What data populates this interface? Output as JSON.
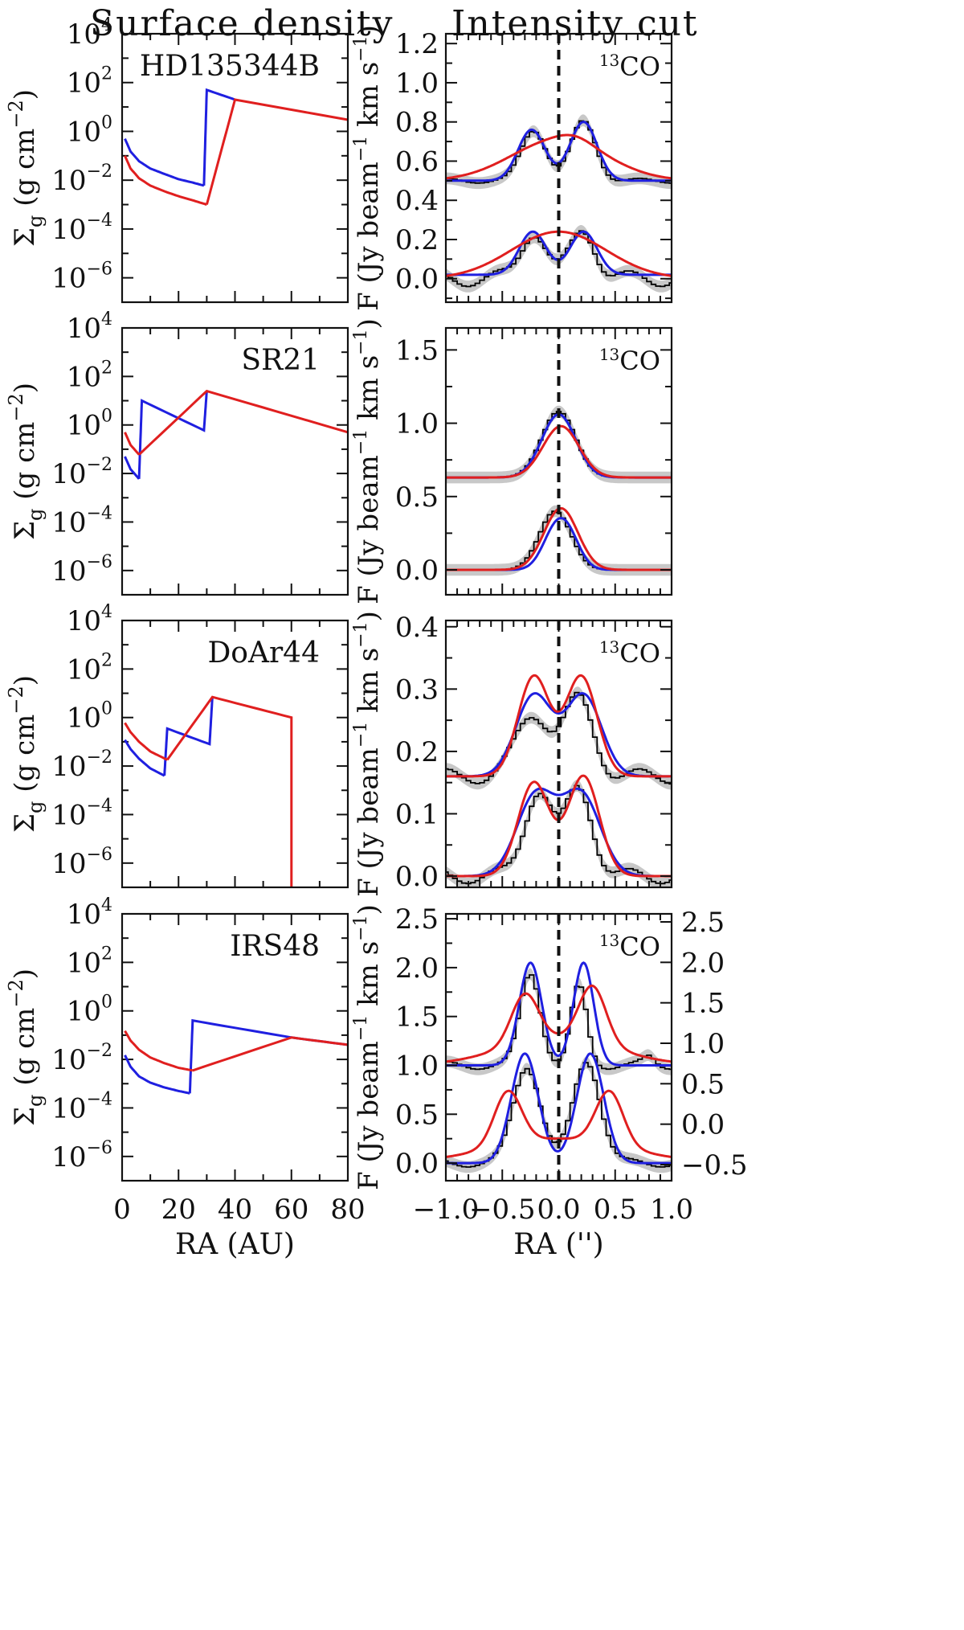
{
  "figure": {
    "col_titles": {
      "left": "Surface density",
      "right": "Intensity cut"
    },
    "left_axis": {
      "ylabel_sym": "Σ",
      "ylabel_sub": "g",
      "ylabel_unit": "(g cm",
      "ylabel_exp": "−2",
      "ylabel_close": ")",
      "yticks": [
        4,
        2,
        0,
        -2,
        -4,
        -6
      ],
      "xticks": [
        "0",
        "20",
        "40",
        "60",
        "80"
      ],
      "xlabel": "RA (AU)",
      "xlim": [
        0,
        80
      ]
    },
    "right_axis": {
      "ylabel": "F (Jy beam",
      "ylabel_exp1": "−1",
      "ylabel_mid": " km s",
      "ylabel_exp2": "−1",
      "ylabel_close": ")",
      "xticks": [
        "−1.0",
        "−0.5",
        "0.0",
        "0.5",
        "1.0"
      ],
      "xlabel": "RA ('')",
      "xlim": [
        -1.0,
        1.0
      ],
      "line_label_sup": "13",
      "line_label": "CO"
    },
    "colors": {
      "model_a": "#1f1fe0",
      "model_b": "#e01f1f",
      "data": "#000000",
      "band": "#c8c8c8"
    }
  },
  "chart_data": [
    {
      "type": "line",
      "panel": "surface-density",
      "name": "HD135344B",
      "yscale": "log",
      "ylim": [
        1e-07,
        10000.0
      ],
      "series": [
        {
          "color": "blue",
          "segments": [
            {
              "x": [
                1,
                3,
                6,
                10,
                15,
                20,
                25,
                29
              ],
              "y": [
                0.5,
                0.15,
                0.06,
                0.03,
                0.018,
                0.011,
                0.008,
                0.006
              ]
            },
            {
              "x": [
                29,
                30,
                40
              ],
              "y": [
                0.006,
                50,
                20
              ]
            }
          ]
        },
        {
          "color": "red",
          "segments": [
            {
              "x": [
                1,
                3,
                6,
                10,
                15,
                20,
                25,
                30
              ],
              "y": [
                0.1,
                0.03,
                0.012,
                0.006,
                0.0035,
                0.0022,
                0.0015,
                0.001
              ]
            },
            {
              "x": [
                30,
                40,
                80
              ],
              "y": [
                0.001,
                20,
                3
              ]
            }
          ]
        }
      ]
    },
    {
      "type": "line",
      "panel": "surface-density",
      "name": "SR21",
      "yscale": "log",
      "ylim": [
        1e-07,
        10000.0
      ],
      "series": [
        {
          "color": "blue",
          "segments": [
            {
              "x": [
                1,
                3,
                6
              ],
              "y": [
                0.05,
                0.015,
                0.006
              ]
            },
            {
              "x": [
                6,
                7,
                29,
                30
              ],
              "y": [
                0.006,
                10,
                0.6,
                25
              ]
            }
          ]
        },
        {
          "color": "red",
          "segments": [
            {
              "x": [
                1,
                3,
                6
              ],
              "y": [
                0.5,
                0.15,
                0.06
              ]
            },
            {
              "x": [
                6,
                30,
                80
              ],
              "y": [
                0.06,
                25,
                0.5
              ]
            }
          ]
        }
      ]
    },
    {
      "type": "line",
      "panel": "surface-density",
      "name": "DoAr44",
      "yscale": "log",
      "ylim": [
        1e-07,
        10000.0
      ],
      "series": [
        {
          "color": "blue",
          "segments": [
            {
              "x": [
                1,
                3,
                6,
                10,
                15
              ],
              "y": [
                0.12,
                0.05,
                0.02,
                0.008,
                0.004
              ]
            },
            {
              "x": [
                15,
                16,
                31,
                32
              ],
              "y": [
                0.004,
                0.35,
                0.08,
                7
              ]
            }
          ]
        },
        {
          "color": "red",
          "segments": [
            {
              "x": [
                1,
                3,
                6,
                10,
                16
              ],
              "y": [
                0.6,
                0.25,
                0.1,
                0.04,
                0.018
              ]
            },
            {
              "x": [
                16,
                32,
                60,
                60
              ],
              "y": [
                0.018,
                7,
                1,
                1e-07
              ]
            }
          ]
        }
      ]
    },
    {
      "type": "line",
      "panel": "surface-density",
      "name": "IRS48",
      "yscale": "log",
      "ylim": [
        1e-07,
        10000.0
      ],
      "series": [
        {
          "color": "blue",
          "segments": [
            {
              "x": [
                1,
                3,
                6,
                10,
                15,
                20,
                24
              ],
              "y": [
                0.015,
                0.005,
                0.002,
                0.0011,
                0.0007,
                0.0005,
                0.0004
              ]
            },
            {
              "x": [
                24,
                25,
                60,
                80
              ],
              "y": [
                0.0004,
                0.4,
                0.08,
                0.04
              ]
            }
          ]
        },
        {
          "color": "red",
          "segments": [
            {
              "x": [
                1,
                3,
                6,
                10,
                15,
                20,
                25
              ],
              "y": [
                0.15,
                0.06,
                0.025,
                0.012,
                0.007,
                0.0045,
                0.0035
              ]
            },
            {
              "x": [
                25,
                60,
                80
              ],
              "y": [
                0.0035,
                0.08,
                0.04
              ]
            }
          ]
        }
      ]
    },
    {
      "type": "line",
      "panel": "intensity-cut",
      "name": "HD135344B",
      "ylim": [
        -0.12,
        1.25
      ],
      "yticks": [
        "0.0",
        "0.2",
        "0.4",
        "0.6",
        "0.8",
        "1.0",
        "1.2"
      ],
      "ytick_values": [
        0,
        0.2,
        0.4,
        0.6,
        0.8,
        1.0,
        1.2
      ],
      "groups": [
        {
          "offset": 0.5,
          "data_w": 0.012,
          "data_peaks": [
            [
              -0.22,
              0.26,
              0.11
            ],
            [
              0.22,
              0.3,
              0.11
            ]
          ],
          "blue_base": 0.0,
          "blue_peaks": [
            [
              -0.24,
              0.26,
              0.12
            ],
            [
              0.22,
              0.3,
              0.12
            ]
          ],
          "red_peaks": [
            [
              0.0,
              0.21,
              0.42
            ],
            [
              0.15,
              0.03,
              0.15
            ]
          ],
          "red_base": 0.0
        },
        {
          "offset": 0.0,
          "data_w": 0.04,
          "data_peaks": [
            [
              -0.22,
              0.25,
              0.11
            ],
            [
              0.22,
              0.25,
              0.11
            ]
          ],
          "blue_base": 0.02,
          "blue_peaks": [
            [
              -0.23,
              0.22,
              0.12
            ],
            [
              0.22,
              0.22,
              0.12
            ]
          ],
          "red_peaks": [
            [
              0.0,
              0.24,
              0.42
            ]
          ],
          "red_base": 0.0
        }
      ]
    },
    {
      "type": "line",
      "panel": "intensity-cut",
      "name": "SR21",
      "ylim": [
        -0.17,
        1.65
      ],
      "yticks": [
        "0.0",
        "0.5",
        "1.0",
        "1.5"
      ],
      "ytick_values": [
        0,
        0.5,
        1.0,
        1.5
      ],
      "groups": [
        {
          "offset": 0.63,
          "data_w": 0.0,
          "data_peaks": [
            [
              0.0,
              0.45,
              0.15
            ]
          ],
          "blue_base": 0.0,
          "blue_peaks": [
            [
              0.0,
              0.43,
              0.15
            ]
          ],
          "red_peaks": [
            [
              0.02,
              0.35,
              0.16
            ]
          ],
          "red_base": 0.0
        },
        {
          "offset": 0.0,
          "data_w": 0.0,
          "data_peaks": [
            [
              -0.03,
              0.4,
              0.14
            ]
          ],
          "blue_base": 0.0,
          "blue_peaks": [
            [
              -0.05,
              0.2,
              0.11
            ],
            [
              0.08,
              0.22,
              0.11
            ]
          ],
          "red_peaks": [
            [
              0.02,
              0.42,
              0.15
            ]
          ],
          "red_base": 0.0
        }
      ]
    },
    {
      "type": "line",
      "panel": "intensity-cut",
      "name": "DoAr44",
      "ylim": [
        -0.018,
        0.41
      ],
      "yticks": [
        "0.0",
        "0.1",
        "0.2",
        "0.3",
        "0.4"
      ],
      "ytick_values": [
        0,
        0.1,
        0.2,
        0.3,
        0.4
      ],
      "groups": [
        {
          "offset": 0.16,
          "data_w": 0.012,
          "data_peaks": [
            [
              -0.22,
              0.1,
              0.15
            ],
            [
              0.18,
              0.12,
              0.13
            ]
          ],
          "blue_base": 0.0,
          "blue_peaks": [
            [
              -0.22,
              0.13,
              0.16
            ],
            [
              0.22,
              0.13,
              0.16
            ]
          ],
          "red_peaks": [
            [
              -0.22,
              0.16,
              0.14
            ],
            [
              0.2,
              0.16,
              0.14
            ]
          ],
          "red_base": 0.0
        },
        {
          "offset": 0.0,
          "data_w": 0.012,
          "data_peaks": [
            [
              -0.18,
              0.14,
              0.12
            ],
            [
              0.18,
              0.14,
              0.12
            ]
          ],
          "blue_base": 0.0,
          "blue_peaks": [
            [
              -0.2,
              0.13,
              0.17
            ],
            [
              0.2,
              0.13,
              0.17
            ]
          ],
          "red_peaks": [
            [
              -0.22,
              0.15,
              0.14
            ],
            [
              0.22,
              0.16,
              0.14
            ]
          ],
          "red_base": 0.0
        }
      ]
    },
    {
      "type": "line",
      "panel": "intensity-cut",
      "name": "IRS48",
      "ylim": [
        -0.18,
        2.55
      ],
      "yticks": [
        "0.0",
        "0.5",
        "1.0",
        "1.5",
        "2.0",
        "2.5"
      ],
      "ytick_values": [
        0,
        0.5,
        1.0,
        1.5,
        2.0,
        2.5
      ],
      "right_yticks": [
        "−0.5",
        "0.0",
        "0.5",
        "1.0",
        "1.5",
        "2.0",
        "2.5"
      ],
      "right_ytick_values": [
        -0.5,
        0.0,
        0.5,
        1.0,
        1.5,
        2.0,
        2.5
      ],
      "groups": [
        {
          "offset": 1.0,
          "data_w": 0.04,
          "data_peaks": [
            [
              -0.25,
              0.95,
              0.09
            ],
            [
              0.18,
              0.8,
              0.07
            ],
            [
              0.8,
              0.08,
              0.05
            ]
          ],
          "blue_base": 0.0,
          "blue_peaks": [
            [
              -0.25,
              1.05,
              0.1
            ],
            [
              0.22,
              1.05,
              0.09
            ]
          ],
          "red_peaks": [
            [
              -0.3,
              0.5,
              0.12
            ],
            [
              0.3,
              0.58,
              0.12
            ],
            [
              0.0,
              0.28,
              0.5
            ]
          ],
          "red_base": 0.0
        },
        {
          "offset": 0.0,
          "data_w": 0.04,
          "data_peaks": [
            [
              -0.28,
              1.0,
              0.12
            ],
            [
              0.25,
              1.05,
              0.12
            ]
          ],
          "blue_base": 0.0,
          "blue_peaks": [
            [
              -0.3,
              1.12,
              0.12
            ],
            [
              0.28,
              1.12,
              0.12
            ]
          ],
          "red_peaks": [
            [
              -0.45,
              0.55,
              0.12
            ],
            [
              0.45,
              0.55,
              0.12
            ],
            [
              0.0,
              0.25,
              0.6
            ]
          ],
          "red_base": 0.0
        }
      ]
    }
  ]
}
